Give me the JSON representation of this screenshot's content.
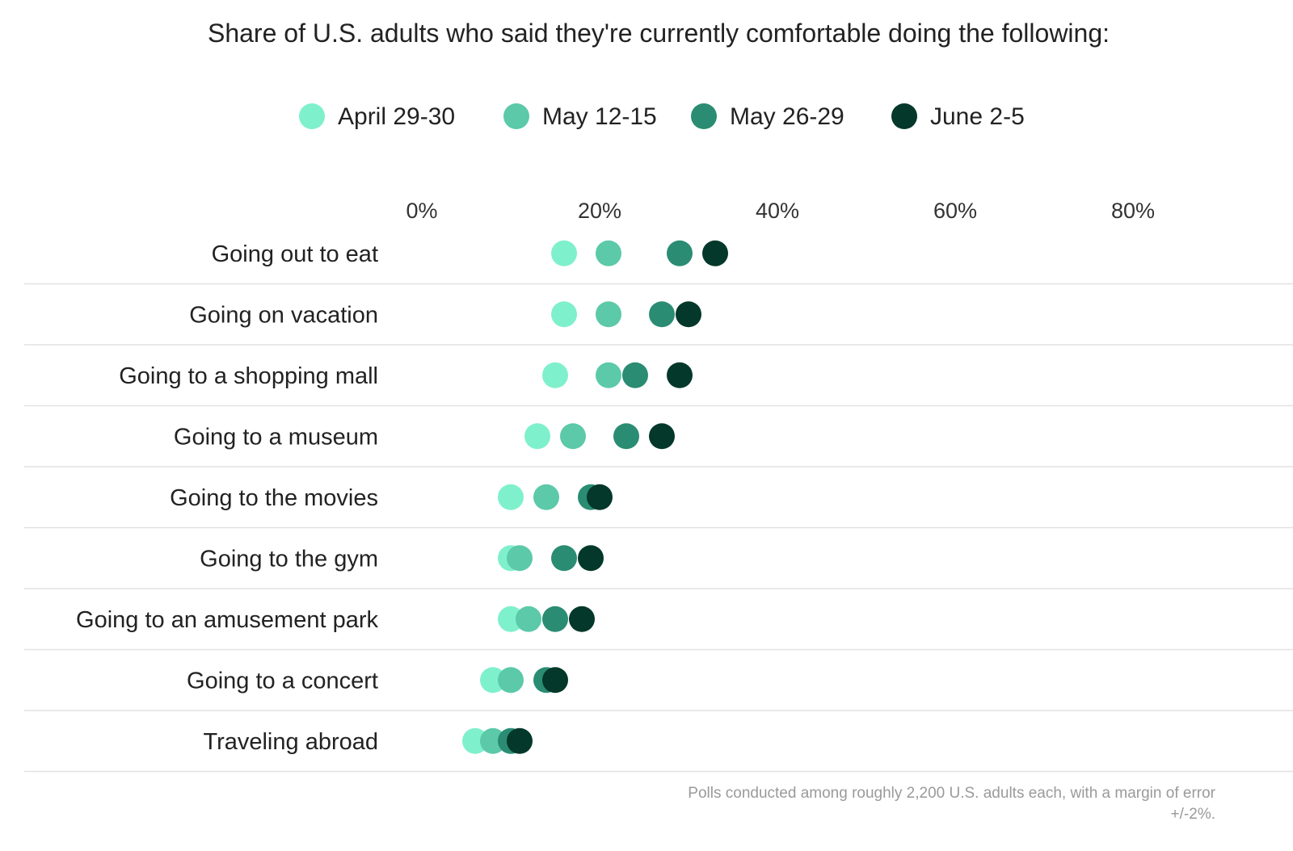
{
  "chart_data": {
    "type": "scatter",
    "title": "Share of U.S. adults who said they're currently comfortable doing the following:",
    "xlabel": "",
    "ylabel": "",
    "xlim": [
      0,
      100
    ],
    "x_ticks": [
      0,
      20,
      40,
      60,
      80
    ],
    "x_tick_labels": [
      "0%",
      "20%",
      "40%",
      "60%",
      "80%"
    ],
    "legend_position": "top-center",
    "grid": false,
    "categories": [
      "Going out to eat",
      "Going on vacation",
      "Going to a shopping mall",
      "Going to a museum",
      "Going to the movies",
      "Going to the gym",
      "Going to an amusement park",
      "Going to a concert",
      "Traveling abroad"
    ],
    "series": [
      {
        "name": "April 29-30",
        "color": "#7ff0cc",
        "values": [
          16,
          16,
          15,
          13,
          10,
          10,
          10,
          8,
          6
        ]
      },
      {
        "name": "May 12-15",
        "color": "#5cc9a9",
        "values": [
          21,
          21,
          21,
          17,
          14,
          11,
          12,
          10,
          8
        ]
      },
      {
        "name": "May 26-29",
        "color": "#2a8c73",
        "values": [
          29,
          27,
          24,
          23,
          19,
          16,
          15,
          14,
          10
        ]
      },
      {
        "name": "June 2-5",
        "color": "#03382a",
        "values": [
          33,
          30,
          29,
          27,
          20,
          19,
          18,
          15,
          11
        ]
      }
    ]
  },
  "footnote": "Polls conducted among roughly 2,200 U.S. adults each, with a margin of error +/-2%."
}
